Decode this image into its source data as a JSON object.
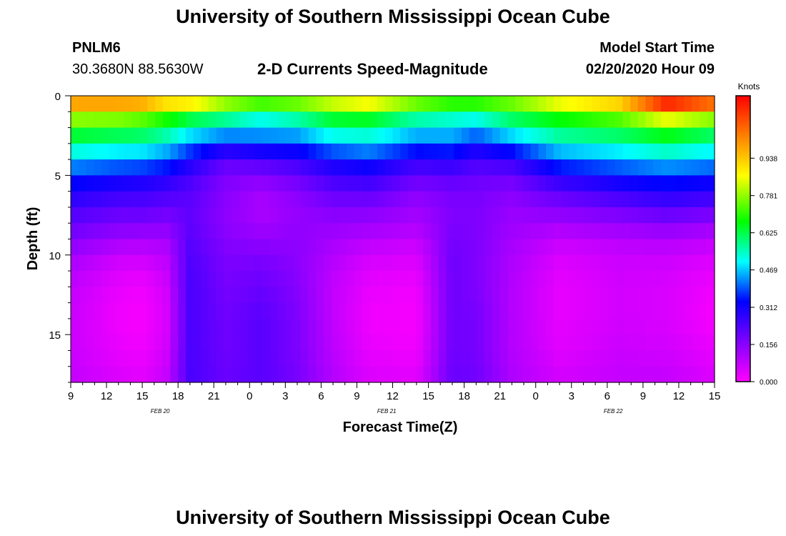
{
  "header": {
    "title": "University of Southern Mississippi Ocean Cube",
    "station": "PNLM6",
    "location": "30.3680N 88.5630W",
    "plot_title": "2-D Currents Speed-Magnitude",
    "model_label": "Model Start Time",
    "model_time": "02/20/2020 Hour 09"
  },
  "footer": {
    "title": "University of Southern Mississippi Ocean Cube"
  },
  "chart_data": {
    "type": "heatmap",
    "title": "2-D Currents Speed-Magnitude",
    "xlabel": "Forecast Time(Z)",
    "ylabel": "Depth (ft)",
    "x_hours_range": [
      9,
      63
    ],
    "x_tick_labels": [
      "9",
      "12",
      "15",
      "18",
      "21",
      "0",
      "3",
      "6",
      "9",
      "12",
      "15",
      "18",
      "21",
      "0",
      "3",
      "6",
      "9",
      "12",
      "15"
    ],
    "x_day_labels": [
      {
        "label": "FEB 20",
        "hour": 16.5
      },
      {
        "label": "FEB 21",
        "hour": 35.5
      },
      {
        "label": "FEB 22",
        "hour": 54.5
      }
    ],
    "y_range": [
      0,
      18
    ],
    "y_ticks": [
      0,
      5,
      10,
      15
    ],
    "colorbar": {
      "title": "Knots",
      "range": [
        0,
        1.2
      ],
      "tick_values": [
        0.0,
        0.156,
        0.312,
        0.469,
        0.625,
        0.781,
        0.938
      ],
      "tick_labels": [
        "0.000",
        "0.156",
        "0.312",
        "0.469",
        "0.625",
        "0.781",
        "0.938"
      ]
    },
    "depth_profile_depths_ft": [
      0.5,
      1,
      2,
      3,
      4,
      5,
      6,
      7,
      8,
      9,
      10,
      12,
      14,
      16,
      18
    ],
    "time_keyframes": [
      {
        "hour": 9,
        "speeds": [
          0.98,
          0.85,
          0.7,
          0.58,
          0.47,
          0.37,
          0.3,
          0.25,
          0.2,
          0.17,
          0.12,
          0.08,
          0.07,
          0.07,
          0.08
        ]
      },
      {
        "hour": 13,
        "speeds": [
          0.98,
          0.85,
          0.68,
          0.55,
          0.44,
          0.34,
          0.27,
          0.22,
          0.17,
          0.13,
          0.07,
          0.03,
          0.02,
          0.03,
          0.05
        ]
      },
      {
        "hour": 15,
        "speeds": [
          0.97,
          0.82,
          0.66,
          0.55,
          0.43,
          0.33,
          0.26,
          0.22,
          0.17,
          0.12,
          0.07,
          0.02,
          0.01,
          0.02,
          0.04
        ]
      },
      {
        "hour": 17,
        "speeds": [
          0.9,
          0.75,
          0.62,
          0.5,
          0.4,
          0.3,
          0.25,
          0.2,
          0.16,
          0.12,
          0.09,
          0.06,
          0.05,
          0.06,
          0.08
        ]
      },
      {
        "hour": 19,
        "speeds": [
          0.88,
          0.7,
          0.55,
          0.42,
          0.32,
          0.25,
          0.22,
          0.21,
          0.21,
          0.22,
          0.23,
          0.24,
          0.24,
          0.24,
          0.24
        ]
      },
      {
        "hour": 22,
        "speeds": [
          0.78,
          0.65,
          0.5,
          0.35,
          0.22,
          0.17,
          0.16,
          0.15,
          0.15,
          0.16,
          0.17,
          0.18,
          0.19,
          0.19,
          0.2
        ]
      },
      {
        "hour": 25,
        "speeds": [
          0.72,
          0.55,
          0.48,
          0.38,
          0.24,
          0.17,
          0.12,
          0.11,
          0.12,
          0.14,
          0.17,
          0.2,
          0.22,
          0.22,
          0.22
        ]
      },
      {
        "hour": 28,
        "speeds": [
          0.75,
          0.62,
          0.5,
          0.38,
          0.27,
          0.2,
          0.16,
          0.14,
          0.14,
          0.15,
          0.15,
          0.16,
          0.17,
          0.17,
          0.18
        ]
      },
      {
        "hour": 31,
        "speeds": [
          0.82,
          0.7,
          0.58,
          0.45,
          0.33,
          0.26,
          0.21,
          0.17,
          0.14,
          0.12,
          0.1,
          0.08,
          0.08,
          0.09,
          0.1
        ]
      },
      {
        "hour": 34,
        "speeds": [
          0.86,
          0.72,
          0.58,
          0.48,
          0.36,
          0.28,
          0.22,
          0.17,
          0.13,
          0.1,
          0.06,
          0.03,
          0.02,
          0.03,
          0.05
        ]
      },
      {
        "hour": 38,
        "speeds": [
          0.75,
          0.62,
          0.5,
          0.4,
          0.28,
          0.21,
          0.16,
          0.13,
          0.11,
          0.08,
          0.05,
          0.02,
          0.01,
          0.02,
          0.04
        ]
      },
      {
        "hour": 41,
        "speeds": [
          0.7,
          0.57,
          0.5,
          0.4,
          0.3,
          0.22,
          0.18,
          0.17,
          0.17,
          0.18,
          0.19,
          0.19,
          0.19,
          0.19,
          0.2
        ]
      },
      {
        "hour": 43,
        "speeds": [
          0.7,
          0.57,
          0.46,
          0.34,
          0.25,
          0.2,
          0.18,
          0.17,
          0.17,
          0.17,
          0.17,
          0.17,
          0.18,
          0.18,
          0.19
        ]
      },
      {
        "hour": 46,
        "speeds": [
          0.75,
          0.65,
          0.56,
          0.4,
          0.28,
          0.2,
          0.16,
          0.14,
          0.13,
          0.12,
          0.11,
          0.1,
          0.1,
          0.1,
          0.11
        ]
      },
      {
        "hour": 50,
        "speeds": [
          0.85,
          0.72,
          0.62,
          0.52,
          0.4,
          0.3,
          0.22,
          0.17,
          0.12,
          0.08,
          0.05,
          0.03,
          0.03,
          0.04,
          0.06
        ]
      },
      {
        "hour": 55,
        "speeds": [
          0.92,
          0.8,
          0.66,
          0.55,
          0.44,
          0.35,
          0.27,
          0.2,
          0.14,
          0.1,
          0.07,
          0.06,
          0.06,
          0.07,
          0.08
        ]
      },
      {
        "hour": 59,
        "speeds": [
          1.15,
          0.98,
          0.72,
          0.6,
          0.48,
          0.38,
          0.3,
          0.23,
          0.16,
          0.11,
          0.07,
          0.05,
          0.05,
          0.06,
          0.08
        ]
      },
      {
        "hour": 63,
        "speeds": [
          1.05,
          0.88,
          0.66,
          0.55,
          0.45,
          0.36,
          0.28,
          0.21,
          0.14,
          0.09,
          0.05,
          0.02,
          0.01,
          0.03,
          0.05
        ]
      }
    ]
  }
}
